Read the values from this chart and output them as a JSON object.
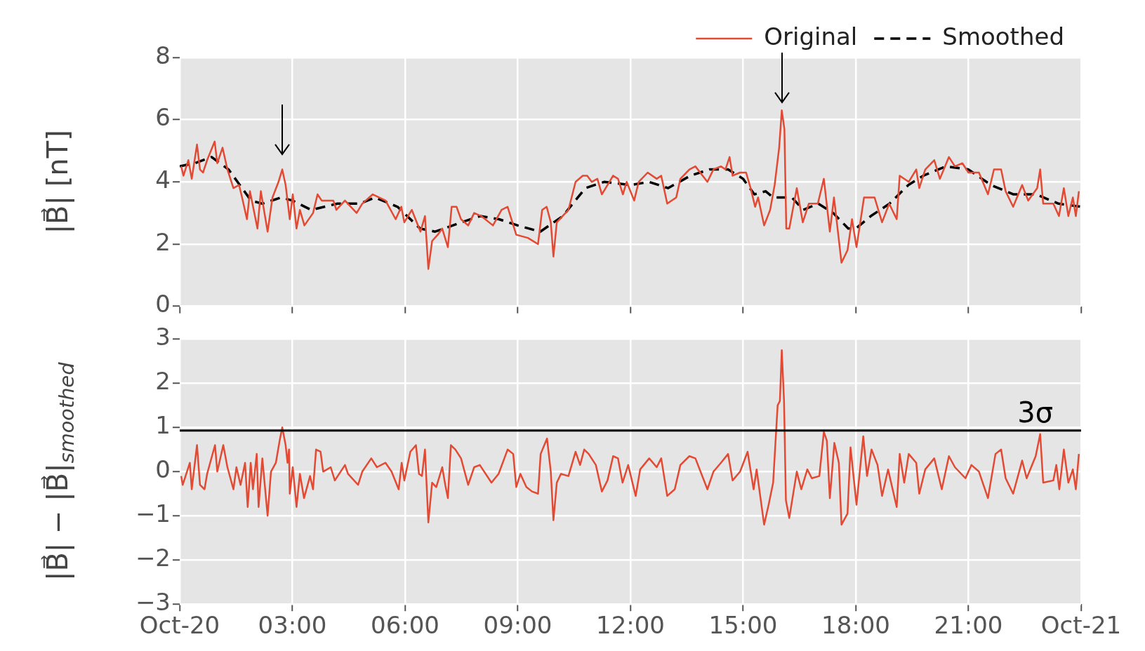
{
  "chart_data": [
    {
      "type": "line",
      "ylabel": "|B⃗| [nT]",
      "xlim": [
        0,
        24
      ],
      "ylim": [
        0,
        8
      ],
      "yticks": [
        0,
        2,
        4,
        6,
        8
      ],
      "xticks": [
        {
          "value": 0,
          "label": null
        },
        {
          "value": 3,
          "label": null
        },
        {
          "value": 6,
          "label": null
        },
        {
          "value": 9,
          "label": null
        },
        {
          "value": 12,
          "label": null
        },
        {
          "value": 15,
          "label": null
        },
        {
          "value": 18,
          "label": null
        },
        {
          "value": 21,
          "label": null
        },
        {
          "value": 24,
          "label": null
        }
      ],
      "tick_labels": "y",
      "grid": true,
      "legend": "top right",
      "series": [
        {
          "name": "Original",
          "color": "#e24a33",
          "line_style": "solid",
          "x": [
            0.04,
            0.1,
            0.23,
            0.32,
            0.46,
            0.54,
            0.62,
            0.73,
            0.93,
            1.0,
            1.14,
            1.27,
            1.43,
            1.58,
            1.66,
            1.79,
            1.87,
            2.07,
            2.16,
            2.34,
            2.47,
            2.63,
            2.73,
            2.82,
            2.93,
            3.01,
            3.11,
            3.2,
            3.32,
            3.55,
            3.67,
            3.78,
            4.09,
            4.17,
            4.4,
            4.71,
            4.86,
            5.14,
            5.48,
            5.75,
            5.9,
            5.98,
            6.18,
            6.41,
            6.53,
            6.62,
            6.72,
            6.87,
            6.99,
            7.14,
            7.24,
            7.37,
            7.49,
            7.68,
            7.84,
            8.03,
            8.34,
            8.57,
            8.73,
            8.96,
            9.27,
            9.54,
            9.65,
            9.77,
            9.88,
            9.95,
            10.04,
            10.35,
            10.54,
            10.73,
            10.85,
            10.97,
            11.12,
            11.24,
            11.54,
            11.67,
            11.8,
            11.9,
            12.1,
            12.22,
            12.46,
            12.7,
            12.82,
            12.98,
            13.22,
            13.33,
            13.57,
            13.73,
            14.05,
            14.21,
            14.41,
            14.53,
            14.64,
            14.72,
            14.92,
            15.08,
            15.2,
            15.32,
            15.4,
            15.56,
            15.72,
            15.84,
            15.96,
            16.03,
            16.1,
            16.15,
            16.23,
            16.43,
            16.59,
            16.75,
            16.99,
            17.15,
            17.31,
            17.42,
            17.62,
            17.78,
            17.9,
            18.02,
            18.22,
            18.5,
            18.7,
            18.89,
            19.09,
            19.17,
            19.41,
            19.61,
            19.69,
            19.85,
            20.09,
            20.24,
            20.48,
            20.64,
            20.84,
            21.0,
            21.28,
            21.52,
            21.68,
            21.87,
            21.99,
            22.19,
            22.43,
            22.59,
            22.83,
            22.91,
            22.99,
            23.26,
            23.41,
            23.54,
            23.66,
            23.78,
            23.86,
            23.94
          ],
          "values": [
            4.5,
            4.2,
            4.7,
            4.1,
            5.2,
            4.4,
            4.3,
            4.7,
            5.3,
            4.6,
            5.1,
            4.4,
            3.8,
            3.9,
            3.5,
            2.8,
            3.7,
            2.5,
            3.7,
            2.4,
            3.5,
            4.0,
            4.4,
            3.9,
            2.8,
            3.6,
            2.5,
            3.1,
            2.6,
            3.0,
            3.6,
            3.4,
            3.4,
            3.1,
            3.4,
            3.0,
            3.3,
            3.6,
            3.4,
            2.8,
            3.2,
            2.7,
            3.1,
            2.4,
            2.9,
            1.2,
            2.1,
            2.3,
            2.5,
            1.9,
            3.2,
            3.2,
            2.8,
            2.6,
            3.0,
            2.9,
            2.6,
            3.1,
            3.2,
            2.3,
            2.2,
            2.0,
            3.1,
            3.2,
            2.7,
            1.6,
            2.7,
            3.1,
            4.0,
            4.2,
            4.2,
            4.0,
            4.1,
            3.6,
            4.2,
            4.1,
            3.6,
            4.0,
            3.4,
            4.0,
            4.3,
            4.1,
            4.2,
            3.3,
            3.5,
            4.1,
            4.4,
            4.5,
            4.0,
            4.4,
            4.5,
            4.4,
            4.8,
            4.2,
            4.3,
            4.3,
            3.8,
            3.2,
            3.5,
            2.6,
            3.1,
            3.9,
            5.1,
            6.3,
            5.7,
            2.5,
            2.5,
            3.8,
            2.7,
            3.3,
            3.3,
            4.1,
            2.4,
            3.5,
            1.4,
            1.8,
            2.8,
            1.9,
            3.5,
            3.5,
            2.7,
            3.3,
            2.8,
            4.2,
            4.0,
            4.4,
            3.8,
            4.4,
            4.7,
            4.1,
            4.8,
            4.5,
            4.6,
            4.3,
            4.3,
            3.6,
            4.4,
            4.4,
            3.7,
            3.2,
            3.9,
            3.4,
            3.8,
            4.4,
            3.3,
            3.3,
            2.9,
            3.8,
            2.9,
            3.5,
            2.9,
            3.7
          ]
        },
        {
          "name": "Smoothed",
          "color": "#000000",
          "line_style": "dashed",
          "x": [
            0,
            0.4,
            0.85,
            1.3,
            1.9,
            2.2,
            2.7,
            3.0,
            3.5,
            4.2,
            4.8,
            5.2,
            5.8,
            6.4,
            6.8,
            7.5,
            8.0,
            8.5,
            9.0,
            9.6,
            10.2,
            10.8,
            11.3,
            12.0,
            12.5,
            13.0,
            13.6,
            14.1,
            14.6,
            15.0,
            15.3,
            15.6,
            15.8,
            16.3,
            16.6,
            17.0,
            17.4,
            17.8,
            18.0,
            18.4,
            18.9,
            19.4,
            19.8,
            20.4,
            21.0,
            21.6,
            22.2,
            22.8,
            23.4,
            24
          ],
          "values": [
            4.5,
            4.6,
            4.8,
            4.4,
            3.4,
            3.3,
            3.5,
            3.4,
            3.1,
            3.3,
            3.3,
            3.5,
            3.2,
            2.5,
            2.4,
            2.7,
            2.9,
            2.8,
            2.6,
            2.4,
            2.9,
            3.8,
            4.0,
            3.9,
            4.0,
            3.8,
            4.2,
            4.4,
            4.4,
            4.1,
            3.6,
            3.7,
            3.5,
            3.5,
            3.1,
            3.3,
            3.0,
            2.5,
            2.5,
            2.9,
            3.3,
            3.9,
            4.2,
            4.5,
            4.4,
            3.9,
            3.6,
            3.6,
            3.3,
            3.2
          ]
        }
      ]
    },
    {
      "type": "line",
      "ylabel": "|B⃗| − |B⃗|$_{smoothed}$",
      "xlim": [
        0,
        24
      ],
      "ylim": [
        -3,
        3
      ],
      "yticks": [
        -3,
        -2,
        -1,
        0,
        1,
        2,
        3
      ],
      "xticks": [
        {
          "value": 0,
          "label": "Oct-20"
        },
        {
          "value": 3,
          "label": "03:00"
        },
        {
          "value": 6,
          "label": "06:00"
        },
        {
          "value": 9,
          "label": "09:00"
        },
        {
          "value": 12,
          "label": "12:00"
        },
        {
          "value": 15,
          "label": "15:00"
        },
        {
          "value": 18,
          "label": "18:00"
        },
        {
          "value": 21,
          "label": "21:00"
        },
        {
          "value": 24,
          "label": "Oct-21"
        }
      ],
      "grid": true,
      "ref_lines": [
        {
          "axis": "y",
          "value": 0.93,
          "label": "3σ",
          "color": "#000000"
        }
      ],
      "series": [
        {
          "color": "#e24a33",
          "x": [
            0.04,
            0.08,
            0.27,
            0.32,
            0.46,
            0.54,
            0.66,
            0.73,
            0.94,
            1.0,
            1.16,
            1.27,
            1.43,
            1.51,
            1.62,
            1.74,
            1.81,
            1.89,
            1.95,
            2.05,
            2.1,
            2.2,
            2.34,
            2.43,
            2.56,
            2.66,
            2.73,
            2.82,
            2.87,
            2.91,
            2.93,
            3.01,
            3.11,
            3.2,
            3.31,
            3.47,
            3.55,
            3.63,
            3.75,
            3.82,
            4.02,
            4.13,
            4.4,
            4.48,
            4.75,
            4.86,
            5.1,
            5.25,
            5.48,
            5.64,
            5.83,
            5.91,
            5.98,
            6.14,
            6.29,
            6.37,
            6.45,
            6.53,
            6.62,
            6.72,
            6.83,
            6.99,
            7.07,
            7.14,
            7.22,
            7.34,
            7.49,
            7.68,
            7.84,
            7.99,
            8.3,
            8.49,
            8.73,
            8.88,
            8.96,
            9.07,
            9.23,
            9.38,
            9.54,
            9.61,
            9.78,
            9.88,
            9.95,
            10.04,
            10.15,
            10.35,
            10.54,
            10.66,
            10.77,
            10.89,
            11.08,
            11.24,
            11.39,
            11.54,
            11.67,
            11.79,
            11.94,
            12.14,
            12.26,
            12.5,
            12.7,
            12.82,
            12.98,
            13.18,
            13.33,
            13.57,
            13.73,
            14.05,
            14.21,
            14.41,
            14.6,
            14.72,
            14.92,
            15.12,
            15.28,
            15.36,
            15.56,
            15.68,
            15.8,
            15.92,
            15.98,
            16.03,
            16.09,
            16.14,
            16.23,
            16.43,
            16.55,
            16.71,
            16.83,
            17.03,
            17.15,
            17.23,
            17.31,
            17.43,
            17.55,
            17.62,
            17.78,
            17.86,
            18.02,
            18.2,
            18.3,
            18.42,
            18.58,
            18.7,
            18.86,
            19.09,
            19.17,
            19.29,
            19.41,
            19.61,
            19.69,
            19.85,
            20.09,
            20.29,
            20.48,
            20.64,
            20.92,
            21.08,
            21.28,
            21.52,
            21.72,
            21.87,
            21.99,
            22.19,
            22.43,
            22.55,
            22.79,
            22.91,
            22.99,
            23.26,
            23.34,
            23.42,
            23.54,
            23.66,
            23.78,
            23.86,
            23.94
          ],
          "values": [
            -0.1,
            -0.3,
            0.2,
            -0.4,
            0.6,
            -0.3,
            -0.4,
            -0.05,
            0.6,
            0.0,
            0.6,
            0.1,
            -0.4,
            0.1,
            -0.3,
            0.2,
            -0.8,
            0.2,
            -0.4,
            0.4,
            -0.8,
            0.3,
            -1.0,
            0.0,
            0.2,
            0.7,
            1.0,
            0.6,
            0.2,
            0.5,
            -0.5,
            0.1,
            -0.8,
            -0.05,
            -0.6,
            -0.1,
            -0.4,
            0.5,
            0.45,
            0.0,
            0.1,
            -0.2,
            0.15,
            -0.05,
            -0.3,
            0.0,
            0.3,
            0.1,
            0.2,
            0.0,
            -0.4,
            0.2,
            -0.2,
            0.45,
            0.6,
            -0.05,
            -0.1,
            0.5,
            -1.15,
            -0.25,
            -0.35,
            0.1,
            -0.3,
            -0.6,
            0.6,
            0.5,
            0.3,
            -0.3,
            0.1,
            0.15,
            -0.25,
            -0.05,
            0.5,
            0.4,
            -0.35,
            -0.05,
            -0.35,
            -0.45,
            -0.5,
            0.4,
            0.75,
            0.0,
            -1.1,
            -0.25,
            -0.05,
            -0.1,
            0.45,
            0.15,
            0.5,
            0.4,
            0.15,
            -0.45,
            -0.2,
            0.35,
            0.3,
            -0.25,
            0.15,
            -0.55,
            0.05,
            0.3,
            0.1,
            0.3,
            -0.55,
            -0.4,
            0.15,
            0.35,
            0.3,
            -0.4,
            0.0,
            0.2,
            0.4,
            -0.2,
            0.0,
            0.45,
            -0.4,
            0.05,
            -1.2,
            -0.75,
            -0.25,
            1.5,
            1.6,
            2.75,
            1.6,
            -0.65,
            -1.05,
            0.0,
            -0.4,
            0.05,
            -0.15,
            -0.1,
            0.9,
            0.7,
            -0.6,
            0.65,
            0.2,
            -1.2,
            -0.95,
            0.55,
            -0.75,
            0.8,
            -0.1,
            0.5,
            0.15,
            -0.55,
            0.05,
            -0.8,
            0.4,
            -0.25,
            0.4,
            0.2,
            -0.5,
            0.05,
            0.3,
            -0.4,
            0.35,
            0.1,
            -0.15,
            0.15,
            0.0,
            -0.6,
            0.4,
            0.5,
            -0.15,
            -0.5,
            0.25,
            -0.15,
            0.35,
            0.85,
            -0.25,
            -0.2,
            0.15,
            -0.4,
            0.5,
            -0.25,
            0.05,
            -0.4,
            0.4
          ]
        }
      ]
    }
  ]
}
